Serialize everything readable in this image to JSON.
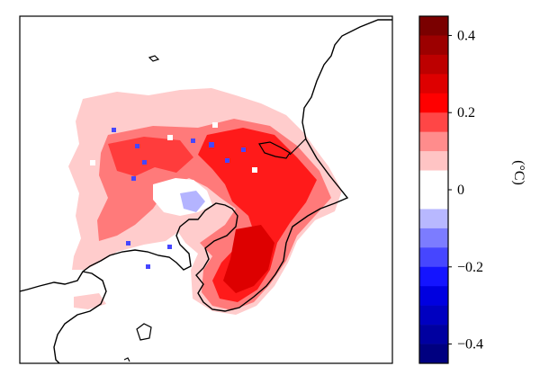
{
  "colorbar": {
    "unit": "(°C)",
    "ticks": [
      {
        "value": 0.4,
        "label": "0.4"
      },
      {
        "value": 0.2,
        "label": "0.2"
      },
      {
        "value": 0,
        "label": "0"
      },
      {
        "value": -0.2,
        "label": "−0.2"
      },
      {
        "value": -0.4,
        "label": "−0.4"
      }
    ],
    "bins": [
      {
        "upper": 0.45,
        "color": "#7a0000"
      },
      {
        "upper": 0.4,
        "color": "#9c0000"
      },
      {
        "upper": 0.35,
        "color": "#bd0000"
      },
      {
        "upper": 0.3,
        "color": "#de0000"
      },
      {
        "upper": 0.25,
        "color": "#ff0000"
      },
      {
        "upper": 0.2,
        "color": "#ff4646"
      },
      {
        "upper": 0.15,
        "color": "#ff8c8c"
      },
      {
        "upper": 0.1,
        "color": "#ffc4c4"
      },
      {
        "upper": 0.05,
        "color": "#ffffff"
      },
      {
        "upper": 0.0,
        "color": "#ffffff"
      },
      {
        "upper": -0.05,
        "color": "#b8b8ff"
      },
      {
        "upper": -0.1,
        "color": "#7c7cff"
      },
      {
        "upper": -0.15,
        "color": "#4646ff"
      },
      {
        "upper": -0.2,
        "color": "#1414ff"
      },
      {
        "upper": -0.25,
        "color": "#0000e0"
      },
      {
        "upper": -0.3,
        "color": "#0000c0"
      },
      {
        "upper": -0.35,
        "color": "#0000a0"
      },
      {
        "upper": -0.4,
        "color": "#000080"
      }
    ],
    "range": [
      -0.45,
      0.45
    ]
  }
}
